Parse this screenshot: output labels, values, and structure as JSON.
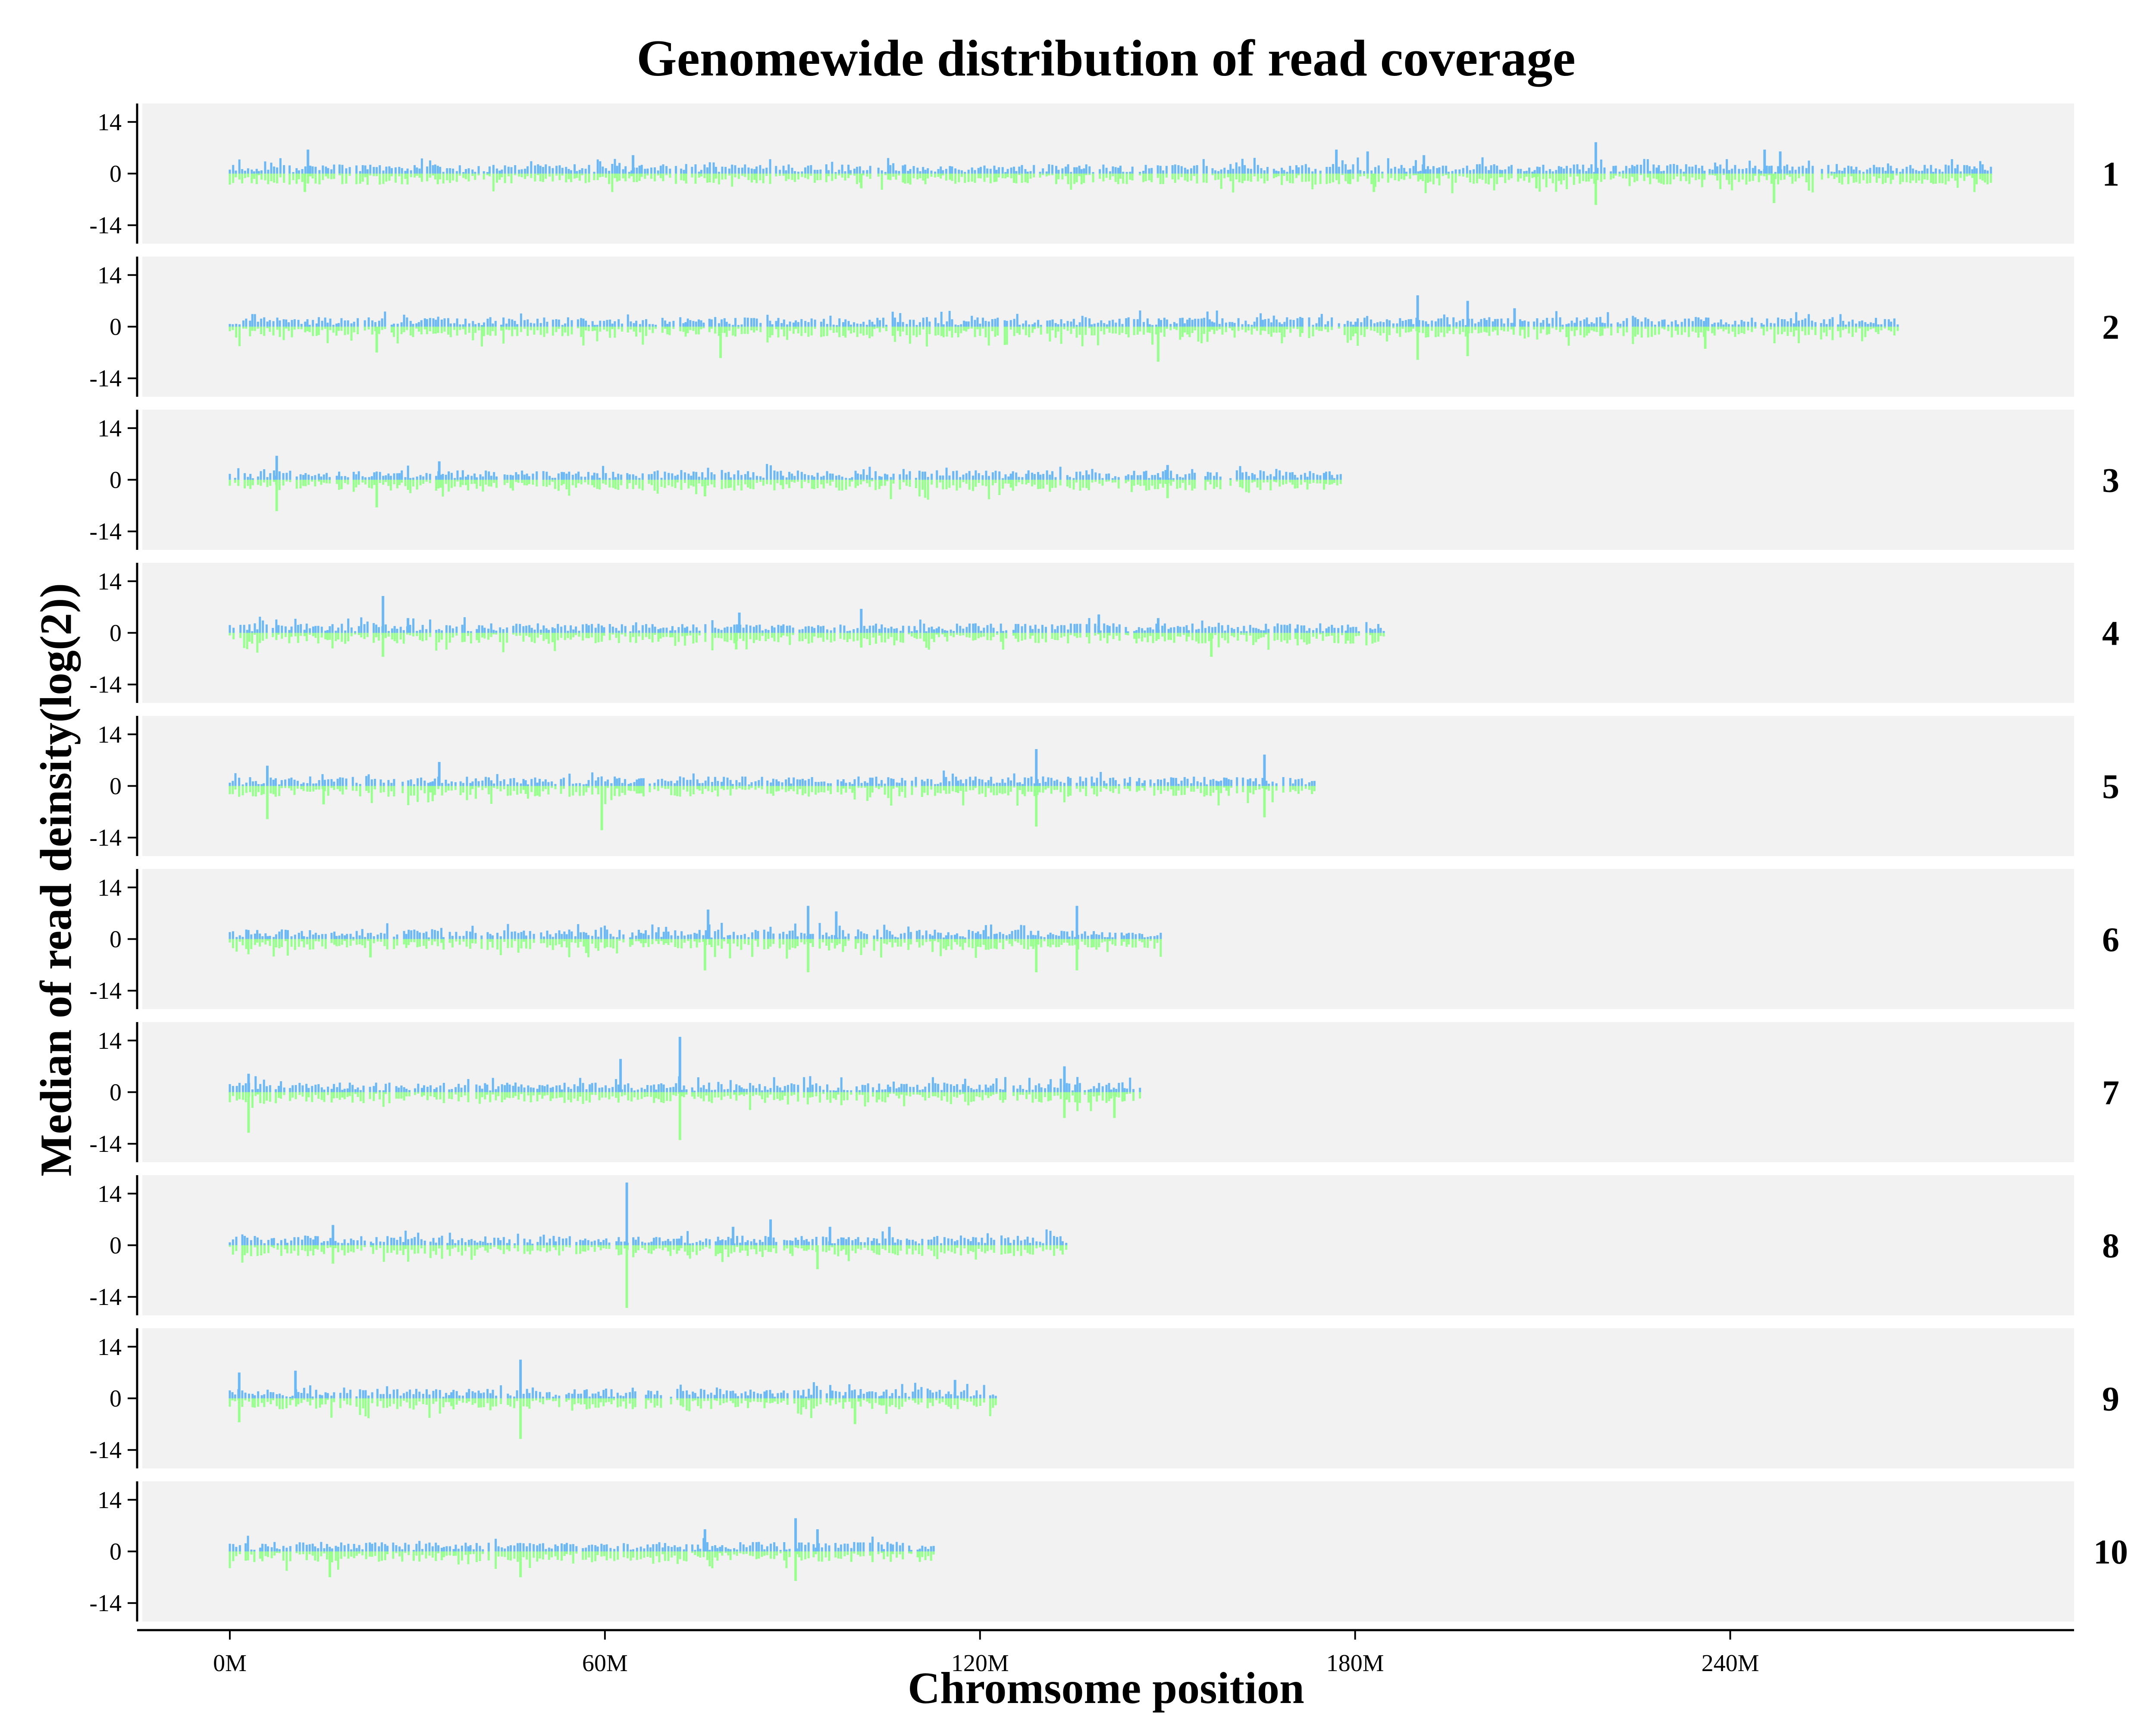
{
  "chart_data": {
    "type": "bar",
    "title": "Genomewide distribution of read coverage",
    "xlabel": "Chromsome position",
    "ylabel": "Median of read deinsity(log(2))",
    "x_unit": "M",
    "x_ticks": [
      0,
      60,
      120,
      180,
      240
    ],
    "x_tick_labels": [
      "0M",
      "60M",
      "120M",
      "180M",
      "240M"
    ],
    "xlim": [
      -14,
      295
    ],
    "y_ticks": [
      14,
      0,
      -14
    ],
    "y_tick_labels": [
      "14",
      "0",
      "-14"
    ],
    "ylim": [
      -19,
      19
    ],
    "facet_by": "chromosome",
    "facet_strip_position": "right",
    "grid": false,
    "colors": {
      "positive": "#6BB8F5",
      "negative": "#99FF8F",
      "panel_background": "#F2F2F2"
    },
    "panels": [
      {
        "label": "1",
        "length_mb": 282,
        "spikes_pos": [
          [
            12.5,
            6.5
          ],
          [
            64.5,
            5
          ],
          [
            177,
            6.5
          ],
          [
            182,
            6
          ],
          [
            191,
            5
          ],
          [
            218.5,
            8.5
          ],
          [
            245.5,
            6.5
          ],
          [
            248,
            6
          ]
        ],
        "spikes_neg": [
          [
            12,
            -5
          ],
          [
            101,
            -4
          ],
          [
            183,
            -5
          ],
          [
            209,
            -4
          ],
          [
            218.5,
            -8.5
          ],
          [
            247,
            -8
          ]
        ]
      },
      {
        "label": "2",
        "length_mb": 267,
        "spikes_pos": [
          [
            190,
            8.5
          ],
          [
            198,
            7
          ],
          [
            205.5,
            5
          ]
        ],
        "spikes_neg": [
          [
            23.5,
            -7
          ],
          [
            78.5,
            -8.5
          ],
          [
            148.5,
            -9.5
          ],
          [
            190,
            -9
          ],
          [
            198,
            -8
          ],
          [
            236,
            -6
          ]
        ]
      },
      {
        "label": "3",
        "length_mb": 178,
        "spikes_pos": [
          [
            7.5,
            6.5
          ],
          [
            33.5,
            5
          ],
          [
            150,
            4
          ]
        ],
        "spikes_neg": [
          [
            7.5,
            -8.5
          ],
          [
            23.5,
            -7.5
          ],
          [
            76,
            -4.5
          ],
          [
            150,
            -5
          ]
        ]
      },
      {
        "label": "4",
        "length_mb": 185,
        "spikes_pos": [
          [
            24.5,
            10
          ],
          [
            28.5,
            4
          ],
          [
            81.5,
            5.5
          ],
          [
            101,
            6.5
          ],
          [
            139,
            5
          ],
          [
            148.5,
            4
          ]
        ],
        "spikes_neg": [
          [
            24.5,
            -6.5
          ],
          [
            81,
            -4.5
          ],
          [
            101,
            -4
          ],
          [
            157,
            -6.5
          ]
        ]
      },
      {
        "label": "5",
        "length_mb": 174,
        "spikes_pos": [
          [
            6,
            5.5
          ],
          [
            33.5,
            6.5
          ],
          [
            129,
            10
          ],
          [
            165.5,
            8.5
          ]
        ],
        "spikes_neg": [
          [
            6,
            -9
          ],
          [
            15,
            -5
          ],
          [
            59.5,
            -12
          ],
          [
            129,
            -11
          ],
          [
            165.5,
            -8.5
          ]
        ]
      },
      {
        "label": "6",
        "length_mb": 149,
        "spikes_pos": [
          [
            76.5,
            8
          ],
          [
            92.5,
            9
          ],
          [
            97,
            7.5
          ],
          [
            135.5,
            9
          ]
        ],
        "spikes_neg": [
          [
            22.5,
            -5
          ],
          [
            76,
            -8.5
          ],
          [
            92.5,
            -9
          ],
          [
            129,
            -9
          ],
          [
            135.5,
            -8.5
          ]
        ]
      },
      {
        "label": "7",
        "length_mb": 146,
        "spikes_pos": [
          [
            3,
            5
          ],
          [
            62.5,
            9
          ],
          [
            72,
            15
          ],
          [
            133.5,
            7
          ]
        ],
        "spikes_neg": [
          [
            3,
            -11
          ],
          [
            72,
            -13
          ],
          [
            133.5,
            -7
          ],
          [
            141.5,
            -7
          ]
        ]
      },
      {
        "label": "8",
        "length_mb": 134,
        "spikes_pos": [
          [
            16.5,
            5.5
          ],
          [
            63.5,
            17
          ],
          [
            80.5,
            5
          ],
          [
            86.5,
            7
          ],
          [
            96,
            5
          ],
          [
            105.5,
            5
          ]
        ],
        "spikes_neg": [
          [
            16.5,
            -5
          ],
          [
            63.5,
            -17
          ],
          [
            94,
            -6.5
          ]
        ]
      },
      {
        "label": "9",
        "length_mb": 123,
        "spikes_pos": [
          [
            1.5,
            7
          ],
          [
            10.5,
            7.5
          ],
          [
            46.5,
            10.5
          ],
          [
            116,
            5
          ]
        ],
        "spikes_neg": [
          [
            1.5,
            -6.5
          ],
          [
            46.5,
            -11
          ],
          [
            100,
            -7
          ]
        ]
      },
      {
        "label": "10",
        "length_mb": 113,
        "spikes_pos": [
          [
            76,
            6
          ],
          [
            90.5,
            9
          ],
          [
            94,
            6
          ]
        ],
        "spikes_neg": [
          [
            16,
            -7
          ],
          [
            46.5,
            -7
          ],
          [
            90.5,
            -8
          ]
        ]
      }
    ]
  }
}
